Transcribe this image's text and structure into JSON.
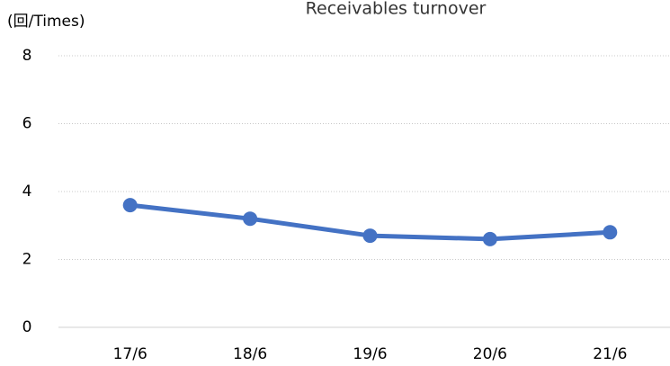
{
  "chart_data": {
    "type": "line",
    "title": "Receivables turnover",
    "y_label": "(回/Times)",
    "categories": [
      "17/6",
      "18/6",
      "19/6",
      "20/6",
      "21/6"
    ],
    "series": [
      {
        "name": "Receivables turnover",
        "color": "#4472c4",
        "values": [
          3.6,
          3.2,
          2.7,
          2.6,
          2.8
        ]
      }
    ],
    "ylim": [
      0,
      8
    ],
    "yticks": [
      0,
      2,
      4,
      6,
      8
    ],
    "grid": true
  }
}
